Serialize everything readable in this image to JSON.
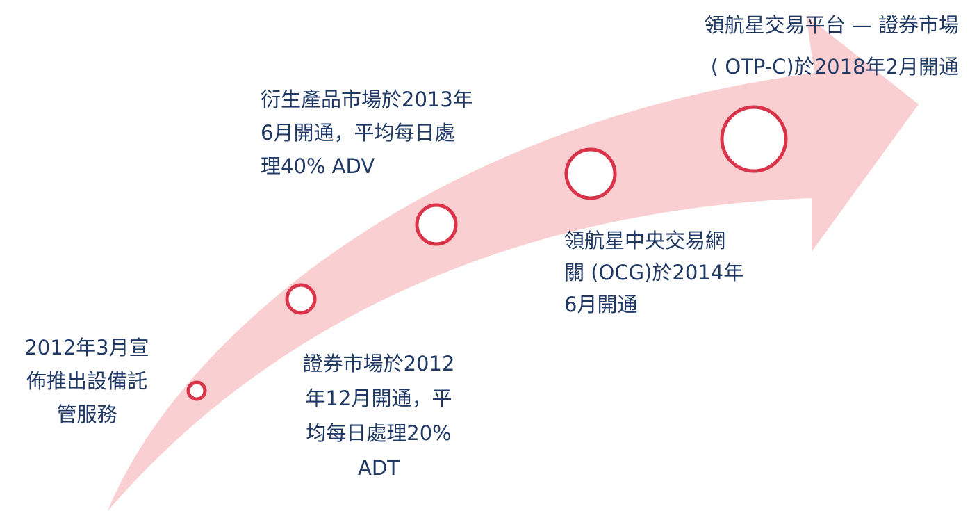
{
  "milestones": [
    {
      "lines": [
        "2012年3月宣",
        "佈推出設備託",
        "管服務"
      ]
    },
    {
      "lines": [
        "證券市場於2012",
        "年12月開通，平",
        "均每日處理20%",
        "ADT"
      ]
    },
    {
      "lines": [
        "衍生產品市場於2013年",
        "6月開通，平均每日處",
        "理40% ADV"
      ]
    },
    {
      "lines": [
        "領航星中央交易網",
        "關 (OCG)於2014年",
        "6月開通"
      ]
    },
    {
      "lines": [
        "領航星交易平台 — 證券市場",
        "( OTP-C)於2018年2月開通"
      ]
    }
  ]
}
